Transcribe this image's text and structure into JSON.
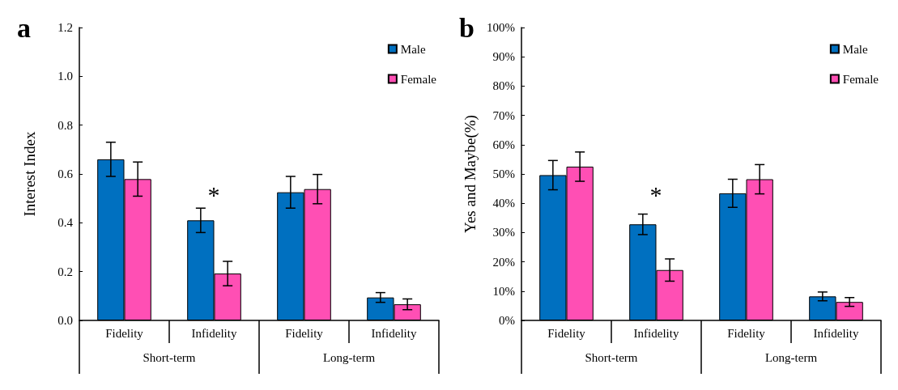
{
  "chart_data": [
    {
      "type": "bar",
      "title": "a",
      "ylabel": "Interest Index",
      "categories": [
        "Fidelity",
        "Infidelity",
        "Fidelity",
        "Infidelity"
      ],
      "series": [
        {
          "name": "Male",
          "color": "#0070c0",
          "values": [
            0.66,
            0.41,
            0.525,
            0.094
          ],
          "errors": [
            0.07,
            0.05,
            0.065,
            0.02
          ]
        },
        {
          "name": "Female",
          "color": "#ff4fb4",
          "values": [
            0.579,
            0.192,
            0.538,
            0.066
          ],
          "errors": [
            0.07,
            0.05,
            0.06,
            0.022
          ]
        }
      ],
      "ylim": [
        0,
        1.2
      ],
      "yticks": [
        {
          "value": 0,
          "label": "0.0"
        },
        0.2,
        0.4,
        0.6,
        0.8,
        {
          "value": 1,
          "label": "1.0"
        },
        1.2
      ],
      "annotations": [
        "*",
        "Short-term",
        "Long-term"
      ],
      "legend": "top right",
      "grid": false
    },
    {
      "type": "bar",
      "title": "b",
      "ylabel": "Yes and Maybe(%)",
      "categories": [
        "Fidelity",
        "Infidelity",
        "Fidelity",
        "Infidelity"
      ],
      "series": [
        {
          "name": "Male",
          "color": "#0070c0",
          "values": [
            49.6,
            32.8,
            43.4,
            8.2
          ],
          "errors": [
            5,
            3.5,
            4.8,
            1.5
          ]
        },
        {
          "name": "Female",
          "color": "#ff4fb4",
          "values": [
            52.5,
            17.2,
            48.2,
            6.3
          ],
          "errors": [
            5,
            3.8,
            5,
            1.5
          ]
        }
      ],
      "ylim": [
        0,
        100
      ],
      "yticks": [
        {
          "value": 0,
          "label": "0%"
        },
        {
          "value": 10,
          "label": "10%"
        },
        {
          "value": 20,
          "label": "20%"
        },
        {
          "value": 30,
          "label": "30%"
        },
        {
          "value": 40,
          "label": "40%"
        },
        {
          "value": 50,
          "label": "50%"
        },
        {
          "value": 60,
          "label": "60%"
        },
        {
          "value": 70,
          "label": "70%"
        },
        {
          "value": 80,
          "label": "80%"
        },
        {
          "value": 90,
          "label": "90%"
        },
        {
          "value": 100,
          "label": "100%"
        }
      ],
      "annotations": [
        "*",
        "Short-term",
        "Long-term"
      ],
      "legend": "top right",
      "grid": false
    }
  ]
}
